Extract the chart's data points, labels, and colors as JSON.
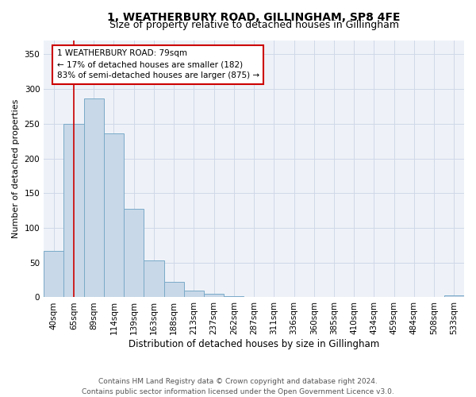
{
  "title": "1, WEATHERBURY ROAD, GILLINGHAM, SP8 4FE",
  "subtitle": "Size of property relative to detached houses in Gillingham",
  "xlabel": "Distribution of detached houses by size in Gillingham",
  "ylabel": "Number of detached properties",
  "bar_color": "#c8d8e8",
  "bar_edge_color": "#7aaac8",
  "categories": [
    "40sqm",
    "65sqm",
    "89sqm",
    "114sqm",
    "139sqm",
    "163sqm",
    "188sqm",
    "213sqm",
    "237sqm",
    "262sqm",
    "287sqm",
    "311sqm",
    "336sqm",
    "360sqm",
    "385sqm",
    "410sqm",
    "434sqm",
    "459sqm",
    "484sqm",
    "508sqm",
    "533sqm"
  ],
  "values": [
    67,
    250,
    287,
    236,
    128,
    53,
    22,
    10,
    5,
    2,
    1,
    0,
    0,
    0,
    0,
    0,
    0,
    0,
    0,
    0,
    3
  ],
  "ylim": [
    0,
    370
  ],
  "yticks": [
    0,
    50,
    100,
    150,
    200,
    250,
    300,
    350
  ],
  "property_line_x": 1.0,
  "annotation_text": "1 WEATHERBURY ROAD: 79sqm\n← 17% of detached houses are smaller (182)\n83% of semi-detached houses are larger (875) →",
  "annotation_box_color": "#ffffff",
  "annotation_box_edgecolor": "#cc0000",
  "property_line_color": "#cc0000",
  "grid_color": "#d0d8e8",
  "background_color": "#eef2f8",
  "footer_text": "Contains HM Land Registry data © Crown copyright and database right 2024.\nContains public sector information licensed under the Open Government Licence v3.0.",
  "title_fontsize": 10,
  "subtitle_fontsize": 9,
  "xlabel_fontsize": 8.5,
  "ylabel_fontsize": 8,
  "tick_fontsize": 7.5,
  "annotation_fontsize": 7.5,
  "footer_fontsize": 6.5
}
